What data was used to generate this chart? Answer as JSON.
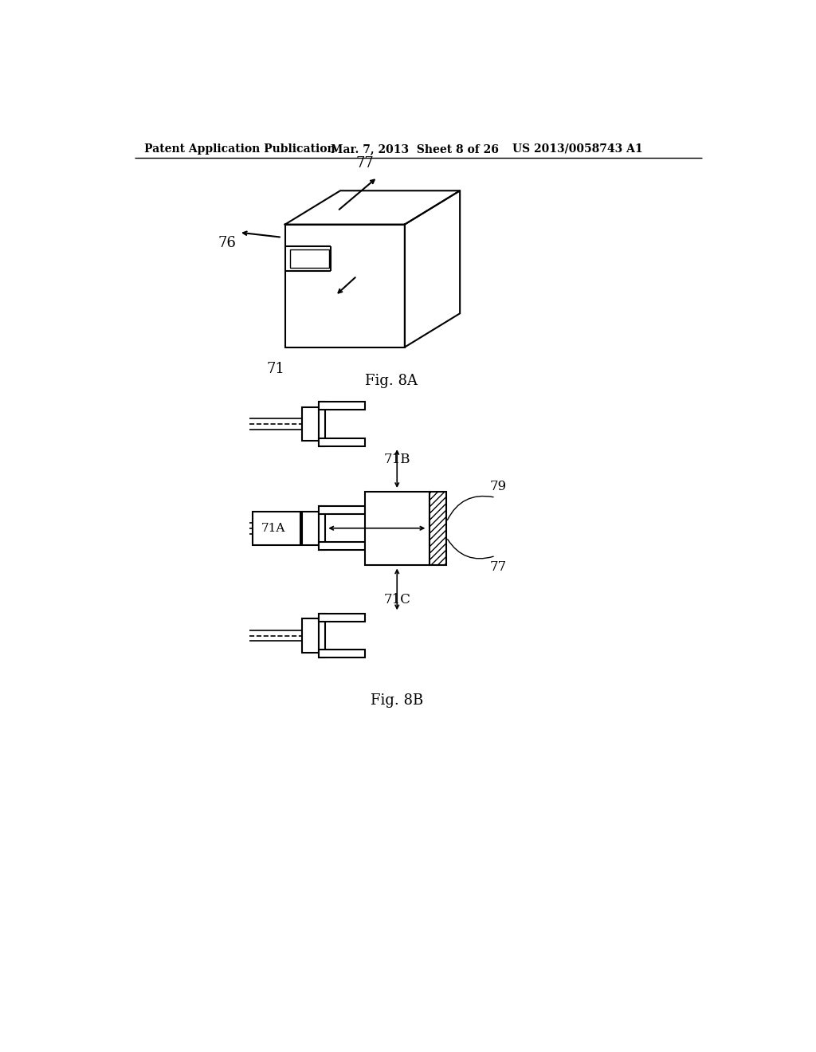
{
  "bg_color": "#ffffff",
  "line_color": "#000000",
  "header_left": "Patent Application Publication",
  "header_mid": "Mar. 7, 2013  Sheet 8 of 26",
  "header_right": "US 2013/0058743 A1",
  "fig8a_label": "Fig. 8A",
  "fig8b_label": "Fig. 8B",
  "label_71": "71",
  "label_76": "76",
  "label_77": "77",
  "label_71A": "71A",
  "label_71B": "71B",
  "label_71C": "71C",
  "label_79": "79"
}
